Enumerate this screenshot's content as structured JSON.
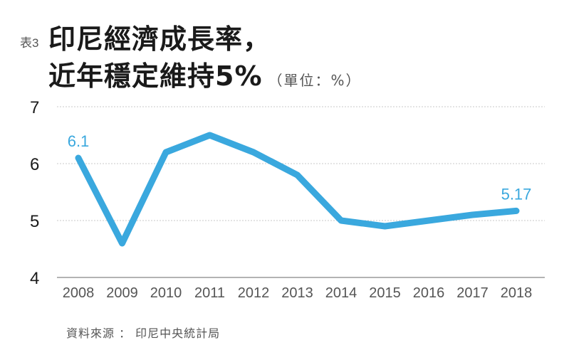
{
  "header": {
    "tag": "表3",
    "title_line1": "印尼經濟成長率，",
    "title_line2": "近年穩定維持5%",
    "unit": "（單位：%）"
  },
  "footer": {
    "source": "資料來源 ： 印尼中央統計局"
  },
  "colors": {
    "line": "#3aa8de",
    "grid": "#c8c8c8",
    "axis": "#9a9a9a"
  },
  "chart_data": {
    "type": "line",
    "title": "印尼經濟成長率，近年穩定維持5%",
    "subtitle": "（單位：%）",
    "xlabel": "",
    "ylabel": "%",
    "categories": [
      "2008",
      "2009",
      "2010",
      "2011",
      "2012",
      "2013",
      "2014",
      "2015",
      "2016",
      "2017",
      "2018"
    ],
    "series": [
      {
        "name": "印尼經濟成長率",
        "values": [
          6.1,
          4.6,
          6.2,
          6.5,
          6.2,
          5.8,
          5.0,
          4.9,
          5.0,
          5.1,
          5.17
        ]
      }
    ],
    "annotations": [
      {
        "x": "2008",
        "label": "6.1"
      },
      {
        "x": "2018",
        "label": "5.17"
      }
    ],
    "yticks": [
      4,
      5,
      6,
      7
    ],
    "ylim": [
      4,
      7
    ],
    "grid": true,
    "legend": "none",
    "source": "資料來源 ： 印尼中央統計局"
  }
}
